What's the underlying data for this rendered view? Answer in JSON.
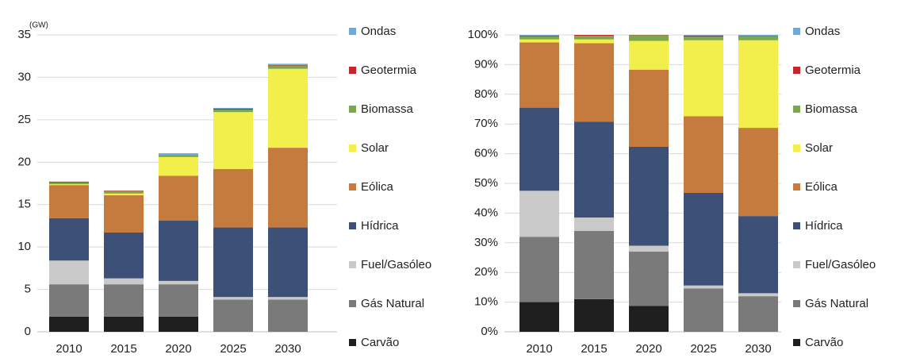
{
  "chart_data": [
    {
      "type": "stacked_bar",
      "annotation": "(GW)",
      "categories": [
        "2010",
        "2015",
        "2020",
        "2025",
        "2030"
      ],
      "ylim": [
        0,
        35
      ],
      "yticks": [
        0,
        5,
        10,
        15,
        20,
        25,
        30,
        35
      ],
      "grid": true,
      "series": [
        {
          "name": "Carvão",
          "color": "#1f1f1f",
          "values": [
            1.8,
            1.8,
            1.8,
            0,
            0
          ]
        },
        {
          "name": "Gás Natural",
          "color": "#7a7a7a",
          "values": [
            3.8,
            3.8,
            3.8,
            3.8,
            3.8
          ]
        },
        {
          "name": "Fuel/Gasóleo",
          "color": "#c9c9c9",
          "values": [
            2.8,
            0.7,
            0.4,
            0.3,
            0.3
          ]
        },
        {
          "name": "Hídrica",
          "color": "#3d5078",
          "values": [
            5.0,
            5.4,
            7.1,
            8.2,
            8.2
          ]
        },
        {
          "name": "Eólica",
          "color": "#c67b3e",
          "values": [
            3.9,
            4.4,
            5.3,
            6.9,
            9.4
          ]
        },
        {
          "name": "Solar",
          "color": "#f2ee4a",
          "values": [
            0.1,
            0.2,
            2.2,
            6.7,
            9.3
          ]
        },
        {
          "name": "Biomassa",
          "color": "#7aa84a",
          "values": [
            0.2,
            0.3,
            0.2,
            0.3,
            0.4
          ]
        },
        {
          "name": "Geotermia",
          "color": "#c0272d",
          "values": [
            0.1,
            0.05,
            0.05,
            0.1,
            0.05
          ]
        },
        {
          "name": "Ondas",
          "color": "#6fa8dc",
          "values": [
            0,
            0,
            0.2,
            0.1,
            0.15
          ]
        }
      ]
    },
    {
      "type": "stacked_bar",
      "categories": [
        "2010",
        "2015",
        "2020",
        "2025",
        "2030"
      ],
      "ylim": [
        0,
        100
      ],
      "yticks": [
        {
          "value": 0,
          "label": "0%"
        },
        {
          "value": 10,
          "label": "10%"
        },
        {
          "value": 20,
          "label": "20%"
        },
        {
          "value": 30,
          "label": "30%"
        },
        {
          "value": 40,
          "label": "40%"
        },
        {
          "value": 50,
          "label": "50%"
        },
        {
          "value": 60,
          "label": "60%"
        },
        {
          "value": 70,
          "label": "70%"
        },
        {
          "value": 80,
          "label": "80%"
        },
        {
          "value": 90,
          "label": "90%"
        },
        {
          "value": 100,
          "label": "100%"
        }
      ],
      "grid": true,
      "series": [
        {
          "name": "Carvão",
          "color": "#1f1f1f",
          "values": [
            10,
            11,
            8.7,
            0,
            0
          ]
        },
        {
          "name": "Gás Natural",
          "color": "#7a7a7a",
          "values": [
            22,
            23,
            18.3,
            14.6,
            12
          ]
        },
        {
          "name": "Fuel/Gasóleo",
          "color": "#c9c9c9",
          "values": [
            15.5,
            4.5,
            2,
            1,
            1
          ]
        },
        {
          "name": "Hídrica",
          "color": "#3d5078",
          "values": [
            28,
            32.3,
            33.3,
            31.2,
            26
          ]
        },
        {
          "name": "Eólica",
          "color": "#c67b3e",
          "values": [
            22,
            26.4,
            26,
            25.8,
            29.7
          ]
        },
        {
          "name": "Solar",
          "color": "#f2ee4a",
          "values": [
            1,
            1.3,
            9.7,
            25.6,
            29.5
          ]
        },
        {
          "name": "Biomassa",
          "color": "#7aa84a",
          "values": [
            1,
            1.2,
            1.9,
            1.2,
            1.3
          ]
        },
        {
          "name": "Geotermia",
          "color": "#c0272d",
          "values": [
            0.3,
            0.3,
            0.1,
            0.4,
            0.2
          ]
        },
        {
          "name": "Ondas",
          "color": "#6fa8dc",
          "values": [
            0.2,
            0,
            0,
            0.2,
            0.3
          ]
        }
      ]
    }
  ]
}
